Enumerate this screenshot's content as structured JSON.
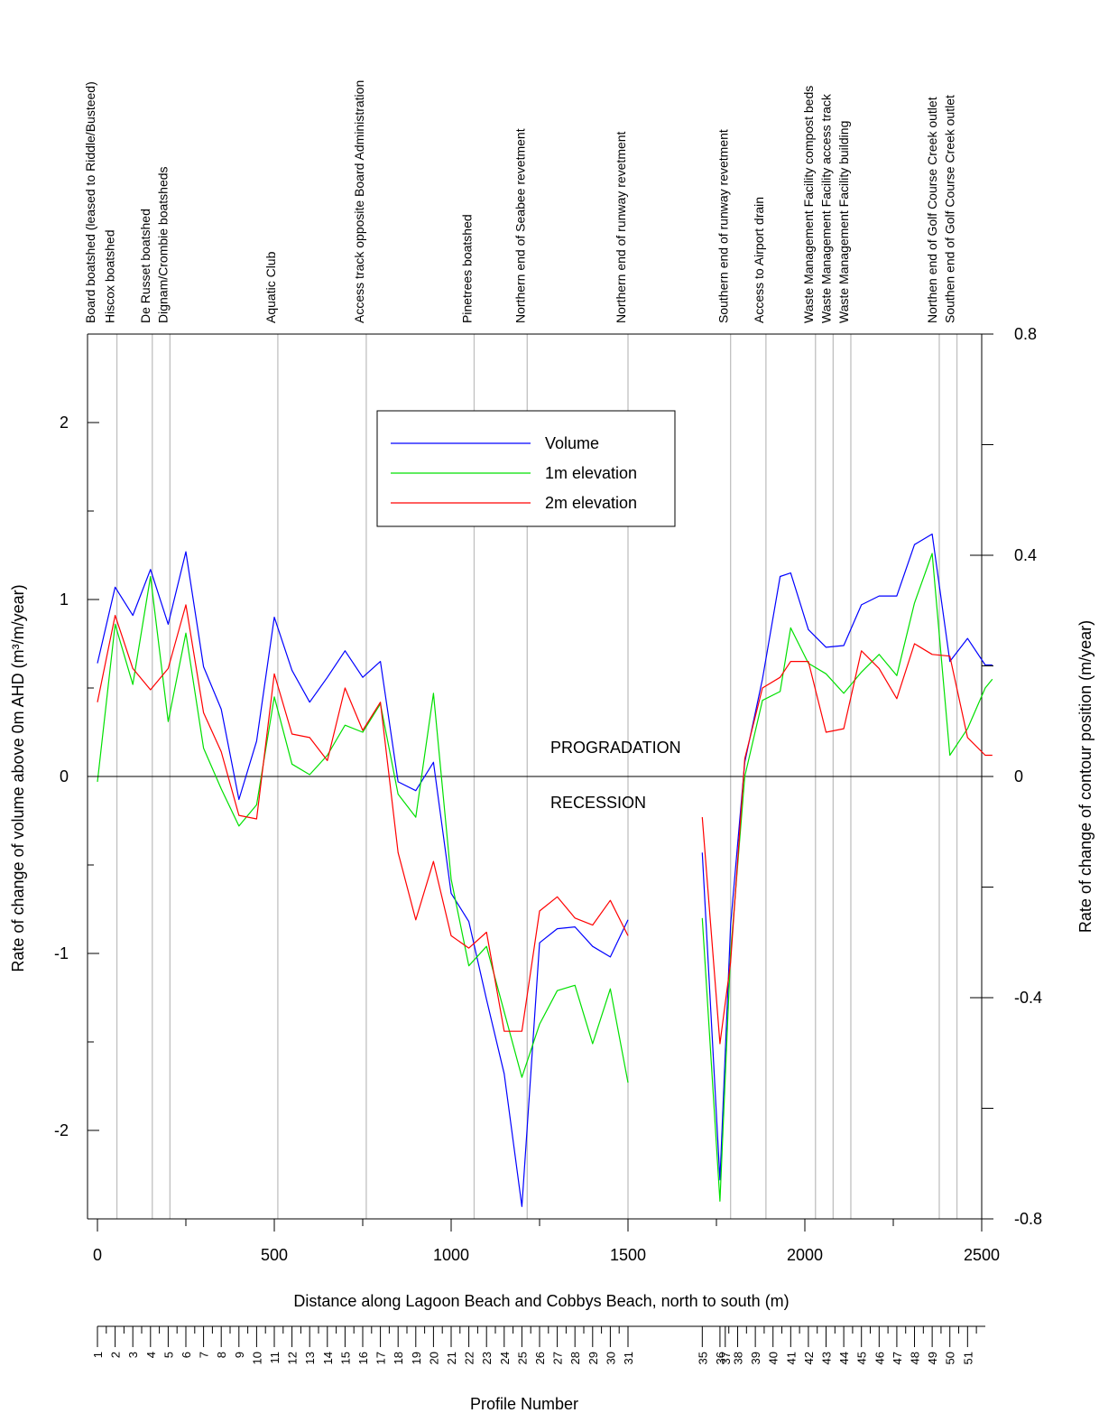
{
  "chart_data": {
    "type": "line",
    "xlabel": "Distance along Lagoon Beach and Cobbys Beach, north to south (m)",
    "ylabel_left": "Rate of change of volume above 0m AHD (m³/m/year)",
    "ylabel_right": "Rate of change of contour position (m/year)",
    "profile_axis_label": "Profile Number",
    "xlim": [
      0,
      2500
    ],
    "ylim_left": [
      -2.5,
      2.5
    ],
    "ylim_right": [
      -0.8,
      0.8
    ],
    "x_ticks": [
      0,
      500,
      1000,
      1500,
      2000,
      2500
    ],
    "y_ticks_left": [
      -2,
      -1,
      0,
      1,
      2
    ],
    "y_ticks_right": [
      -0.8,
      -0.4,
      0,
      0.4,
      0.8
    ],
    "grid": false,
    "legend_position": "top-center",
    "zone_labels": {
      "above": "PROGRADATION",
      "below": "RECESSION"
    },
    "series": [
      {
        "name": "Volume",
        "axis": "left",
        "color": "#0000ff",
        "segments": [
          [
            [
              0,
              0.64
            ],
            [
              50,
              1.07
            ],
            [
              100,
              0.91
            ],
            [
              150,
              1.17
            ],
            [
              200,
              0.86
            ],
            [
              250,
              1.27
            ],
            [
              300,
              0.62
            ],
            [
              350,
              0.38
            ],
            [
              400,
              -0.13
            ],
            [
              450,
              0.2
            ],
            [
              500,
              0.9
            ],
            [
              550,
              0.6
            ],
            [
              600,
              0.42
            ],
            [
              650,
              0.56
            ],
            [
              700,
              0.71
            ],
            [
              750,
              0.56
            ],
            [
              800,
              0.65
            ],
            [
              850,
              -0.03
            ],
            [
              900,
              -0.08
            ],
            [
              950,
              0.08
            ],
            [
              1000,
              -0.66
            ],
            [
              1050,
              -0.82
            ],
            [
              1100,
              -1.26
            ],
            [
              1150,
              -1.68
            ],
            [
              1200,
              -2.43
            ],
            [
              1250,
              -0.94
            ],
            [
              1300,
              -0.86
            ],
            [
              1350,
              -0.85
            ],
            [
              1400,
              -0.96
            ],
            [
              1450,
              -1.02
            ],
            [
              1500,
              -0.81
            ]
          ],
          [
            [
              1710,
              -0.43
            ],
            [
              1760,
              -2.28
            ],
            [
              1790,
              -0.84
            ],
            [
              1830,
              0.08
            ],
            [
              1880,
              0.55
            ],
            [
              1930,
              1.13
            ],
            [
              1960,
              1.15
            ],
            [
              2010,
              0.83
            ],
            [
              2060,
              0.73
            ],
            [
              2110,
              0.74
            ],
            [
              2160,
              0.97
            ],
            [
              2210,
              1.02
            ],
            [
              2260,
              1.02
            ],
            [
              2310,
              1.31
            ],
            [
              2360,
              1.37
            ],
            [
              2410,
              0.65
            ],
            [
              2460,
              0.78
            ],
            [
              2510,
              0.63
            ],
            [
              2530,
              0.63
            ]
          ]
        ]
      },
      {
        "name": "1m elevation",
        "axis": "left",
        "color": "#00e000",
        "segments": [
          [
            [
              0,
              -0.03
            ],
            [
              50,
              0.86
            ],
            [
              100,
              0.52
            ],
            [
              150,
              1.13
            ],
            [
              200,
              0.31
            ],
            [
              250,
              0.81
            ],
            [
              300,
              0.16
            ],
            [
              350,
              -0.07
            ],
            [
              400,
              -0.28
            ],
            [
              450,
              -0.16
            ],
            [
              500,
              0.45
            ],
            [
              550,
              0.07
            ],
            [
              600,
              0.01
            ],
            [
              650,
              0.12
            ],
            [
              700,
              0.29
            ],
            [
              750,
              0.25
            ],
            [
              800,
              0.41
            ],
            [
              850,
              -0.1
            ],
            [
              900,
              -0.23
            ],
            [
              950,
              0.47
            ],
            [
              1000,
              -0.58
            ],
            [
              1050,
              -1.07
            ],
            [
              1100,
              -0.96
            ],
            [
              1150,
              -1.33
            ],
            [
              1200,
              -1.7
            ],
            [
              1250,
              -1.4
            ],
            [
              1300,
              -1.21
            ],
            [
              1350,
              -1.18
            ],
            [
              1400,
              -1.51
            ],
            [
              1450,
              -1.2
            ],
            [
              1500,
              -1.73
            ]
          ],
          [
            [
              1710,
              -0.8
            ],
            [
              1760,
              -2.4
            ],
            [
              1790,
              -1.0
            ],
            [
              1830,
              0.0
            ],
            [
              1880,
              0.43
            ],
            [
              1930,
              0.48
            ],
            [
              1960,
              0.84
            ],
            [
              2010,
              0.64
            ],
            [
              2060,
              0.58
            ],
            [
              2110,
              0.47
            ],
            [
              2160,
              0.59
            ],
            [
              2210,
              0.69
            ],
            [
              2260,
              0.57
            ],
            [
              2310,
              0.98
            ],
            [
              2360,
              1.26
            ],
            [
              2410,
              0.12
            ],
            [
              2460,
              0.27
            ],
            [
              2510,
              0.5
            ],
            [
              2530,
              0.55
            ]
          ]
        ]
      },
      {
        "name": "2m elevation",
        "axis": "left",
        "color": "#ff0000",
        "segments": [
          [
            [
              0,
              0.42
            ],
            [
              50,
              0.91
            ],
            [
              100,
              0.61
            ],
            [
              150,
              0.49
            ],
            [
              200,
              0.61
            ],
            [
              250,
              0.97
            ],
            [
              300,
              0.36
            ],
            [
              350,
              0.14
            ],
            [
              400,
              -0.22
            ],
            [
              450,
              -0.24
            ],
            [
              500,
              0.58
            ],
            [
              550,
              0.24
            ],
            [
              600,
              0.22
            ],
            [
              650,
              0.09
            ],
            [
              700,
              0.5
            ],
            [
              750,
              0.26
            ],
            [
              800,
              0.42
            ],
            [
              850,
              -0.43
            ],
            [
              900,
              -0.81
            ],
            [
              950,
              -0.48
            ],
            [
              1000,
              -0.9
            ],
            [
              1050,
              -0.97
            ],
            [
              1100,
              -0.88
            ],
            [
              1150,
              -1.44
            ],
            [
              1200,
              -1.44
            ],
            [
              1250,
              -0.76
            ],
            [
              1300,
              -0.68
            ],
            [
              1350,
              -0.8
            ],
            [
              1400,
              -0.84
            ],
            [
              1450,
              -0.7
            ],
            [
              1500,
              -0.9
            ]
          ],
          [
            [
              1710,
              -0.23
            ],
            [
              1760,
              -1.51
            ],
            [
              1790,
              -1.05
            ],
            [
              1830,
              0.1
            ],
            [
              1880,
              0.5
            ],
            [
              1930,
              0.56
            ],
            [
              1960,
              0.65
            ],
            [
              2010,
              0.65
            ],
            [
              2060,
              0.25
            ],
            [
              2110,
              0.27
            ],
            [
              2160,
              0.71
            ],
            [
              2210,
              0.61
            ],
            [
              2260,
              0.44
            ],
            [
              2310,
              0.75
            ],
            [
              2360,
              0.69
            ],
            [
              2410,
              0.68
            ],
            [
              2460,
              0.22
            ],
            [
              2510,
              0.12
            ],
            [
              2530,
              0.12
            ]
          ]
        ]
      }
    ],
    "landmarks": [
      {
        "x": 0,
        "label": "Board boatshed (leased to Riddle/Busteed)"
      },
      {
        "x": 55,
        "label": "Hiscox boatshed"
      },
      {
        "x": 155,
        "label": "De Russet boatshed"
      },
      {
        "x": 205,
        "label": "Dignam/Crombie boatsheds"
      },
      {
        "x": 510,
        "label": "Aquatic Club"
      },
      {
        "x": 760,
        "label": "Access track opposite Board Administration"
      },
      {
        "x": 1065,
        "label": "Pinetrees boatshed"
      },
      {
        "x": 1215,
        "label": "Northern end of Seabee revetment"
      },
      {
        "x": 1500,
        "label": "Northern end of runway revetment"
      },
      {
        "x": 1790,
        "label": "Southern end of runway revetment"
      },
      {
        "x": 1890,
        "label": "Access to Airport drain"
      },
      {
        "x": 2030,
        "label": "Waste Management Facility compost beds"
      },
      {
        "x": 2080,
        "label": "Waste Management Facility access track"
      },
      {
        "x": 2130,
        "label": "Waste Management Facility building"
      },
      {
        "x": 2380,
        "label": "Northen end of Golf Course Creek outlet"
      },
      {
        "x": 2430,
        "label": "Southen end of Golf Course Creek outlet"
      }
    ],
    "profiles": [
      {
        "n": "1",
        "x": 0
      },
      {
        "n": "2",
        "x": 50
      },
      {
        "n": "3",
        "x": 100
      },
      {
        "n": "4",
        "x": 150
      },
      {
        "n": "5",
        "x": 200
      },
      {
        "n": "6",
        "x": 250
      },
      {
        "n": "7",
        "x": 300
      },
      {
        "n": "8",
        "x": 350
      },
      {
        "n": "9",
        "x": 400
      },
      {
        "n": "10",
        "x": 450
      },
      {
        "n": "11",
        "x": 500
      },
      {
        "n": "12",
        "x": 550
      },
      {
        "n": "13",
        "x": 600
      },
      {
        "n": "14",
        "x": 650
      },
      {
        "n": "15",
        "x": 700
      },
      {
        "n": "16",
        "x": 750
      },
      {
        "n": "17",
        "x": 800
      },
      {
        "n": "18",
        "x": 850
      },
      {
        "n": "19",
        "x": 900
      },
      {
        "n": "20",
        "x": 950
      },
      {
        "n": "21",
        "x": 1000
      },
      {
        "n": "22",
        "x": 1050
      },
      {
        "n": "23",
        "x": 1100
      },
      {
        "n": "24",
        "x": 1150
      },
      {
        "n": "25",
        "x": 1200
      },
      {
        "n": "26",
        "x": 1250
      },
      {
        "n": "27",
        "x": 1300
      },
      {
        "n": "28",
        "x": 1350
      },
      {
        "n": "29",
        "x": 1400
      },
      {
        "n": "30",
        "x": 1450
      },
      {
        "n": "31",
        "x": 1500
      },
      {
        "n": "35",
        "x": 1710
      },
      {
        "n": "36",
        "x": 1760
      },
      {
        "n": "37",
        "x": 1775
      },
      {
        "n": "38",
        "x": 1810
      },
      {
        "n": "39",
        "x": 1860
      },
      {
        "n": "40",
        "x": 1910
      },
      {
        "n": "41",
        "x": 1960
      },
      {
        "n": "42",
        "x": 2010
      },
      {
        "n": "43",
        "x": 2060
      },
      {
        "n": "44",
        "x": 2110
      },
      {
        "n": "45",
        "x": 2160
      },
      {
        "n": "46",
        "x": 2210
      },
      {
        "n": "47",
        "x": 2260
      },
      {
        "n": "48",
        "x": 2310
      },
      {
        "n": "49",
        "x": 2360
      },
      {
        "n": "50",
        "x": 2410
      },
      {
        "n": "51",
        "x": 2460
      }
    ]
  }
}
